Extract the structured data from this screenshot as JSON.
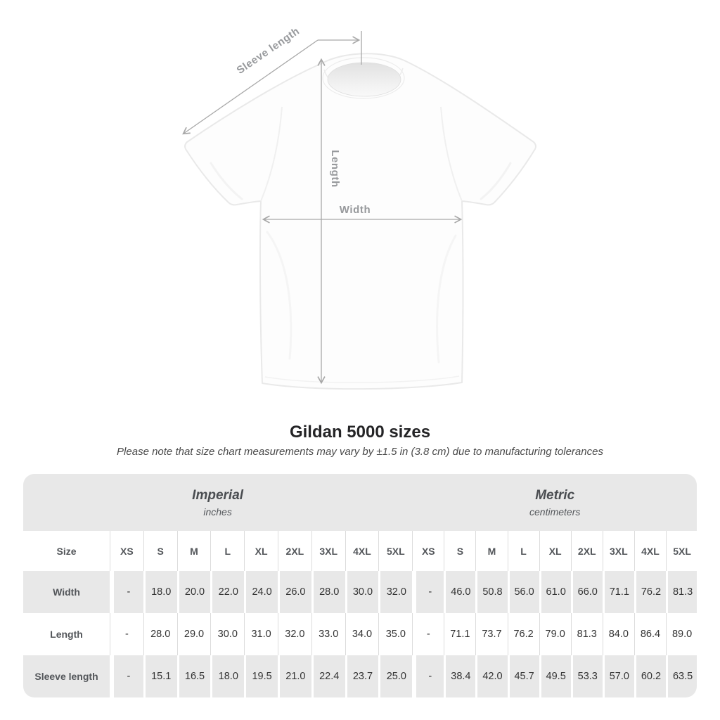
{
  "diagram": {
    "sleeve_label": "Sleeve length",
    "length_label": "Length",
    "width_label": "Width"
  },
  "heading": {
    "title": "Gildan 5000 sizes",
    "subtitle": "Please note that size chart measurements may vary by ±1.5 in (3.8 cm) due to manufacturing tolerances"
  },
  "table": {
    "size_header": "Size",
    "sizes": [
      "XS",
      "S",
      "M",
      "L",
      "XL",
      "2XL",
      "3XL",
      "4XL",
      "5XL"
    ],
    "unit_groups": [
      {
        "label": "Imperial",
        "sub": "inches"
      },
      {
        "label": "Metric",
        "sub": "centimeters"
      }
    ],
    "rows": [
      {
        "label": "Width",
        "imperial": [
          "-",
          "18.0",
          "20.0",
          "22.0",
          "24.0",
          "26.0",
          "28.0",
          "30.0",
          "32.0"
        ],
        "metric": [
          "-",
          "46.0",
          "50.8",
          "56.0",
          "61.0",
          "66.0",
          "71.1",
          "76.2",
          "81.3"
        ]
      },
      {
        "label": "Length",
        "imperial": [
          "-",
          "28.0",
          "29.0",
          "30.0",
          "31.0",
          "32.0",
          "33.0",
          "34.0",
          "35.0"
        ],
        "metric": [
          "-",
          "71.1",
          "73.7",
          "76.2",
          "79.0",
          "81.3",
          "84.0",
          "86.4",
          "89.0"
        ]
      },
      {
        "label": "Sleeve length",
        "imperial": [
          "-",
          "15.1",
          "16.5",
          "18.0",
          "19.5",
          "21.0",
          "22.4",
          "23.7",
          "25.0"
        ],
        "metric": [
          "-",
          "38.4",
          "42.0",
          "45.7",
          "49.5",
          "53.3",
          "57.0",
          "60.2",
          "63.5"
        ]
      }
    ]
  },
  "colors": {
    "stripe_gray": "#e8e8e8",
    "separator_white": "#ffffff",
    "separator_gray": "#dcdcdc",
    "annotation_gray": "#a8a8a8",
    "diagram_label_gray": "#97999c",
    "header_text": "#53565a",
    "value_text": "#333333",
    "shirt_outline": "#e9e9e9"
  }
}
